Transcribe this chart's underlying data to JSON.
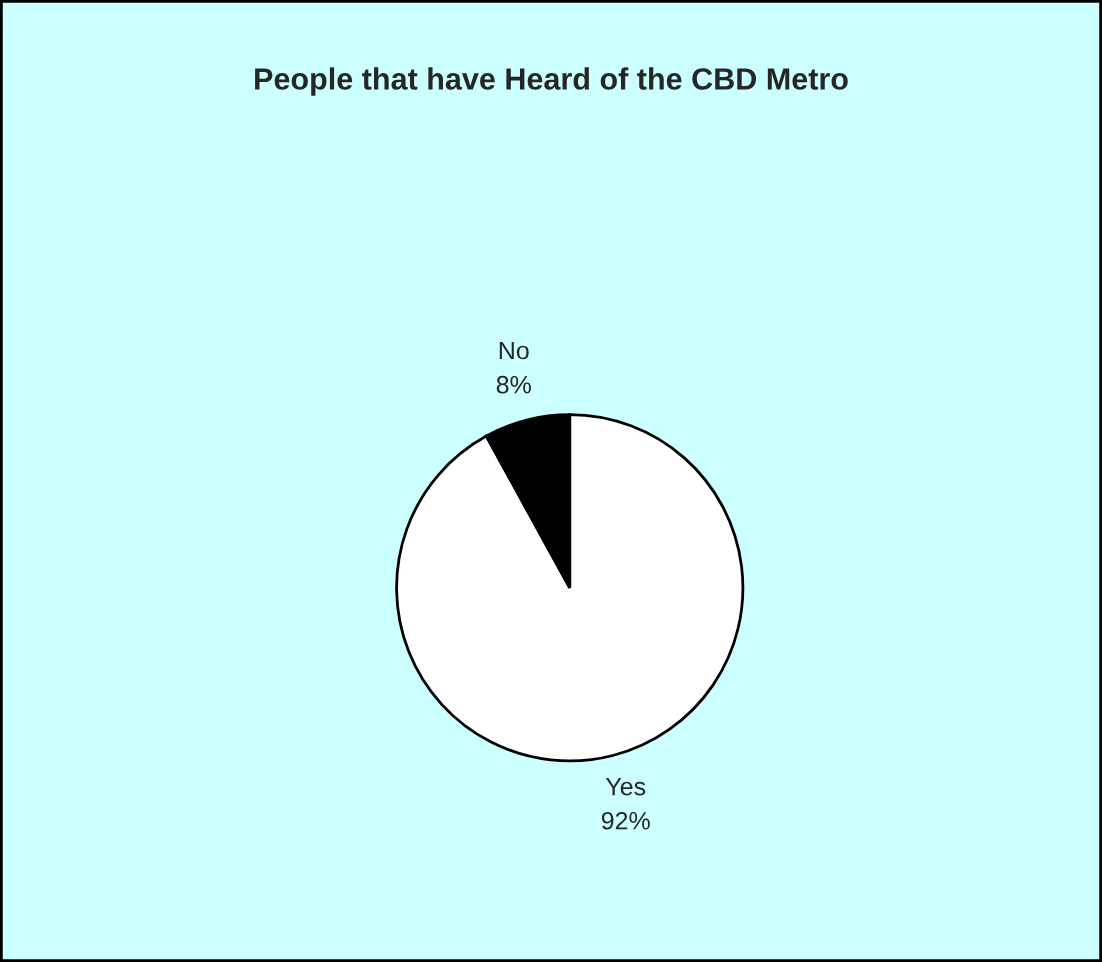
{
  "chart_data": {
    "type": "pie",
    "title": "People that have Heard of the CBD Metro",
    "categories": [
      "Yes",
      "No"
    ],
    "values": [
      92,
      8
    ],
    "value_labels": [
      "92%",
      "8%"
    ],
    "colors": [
      "#ffffff",
      "#000000"
    ],
    "legend": false
  }
}
